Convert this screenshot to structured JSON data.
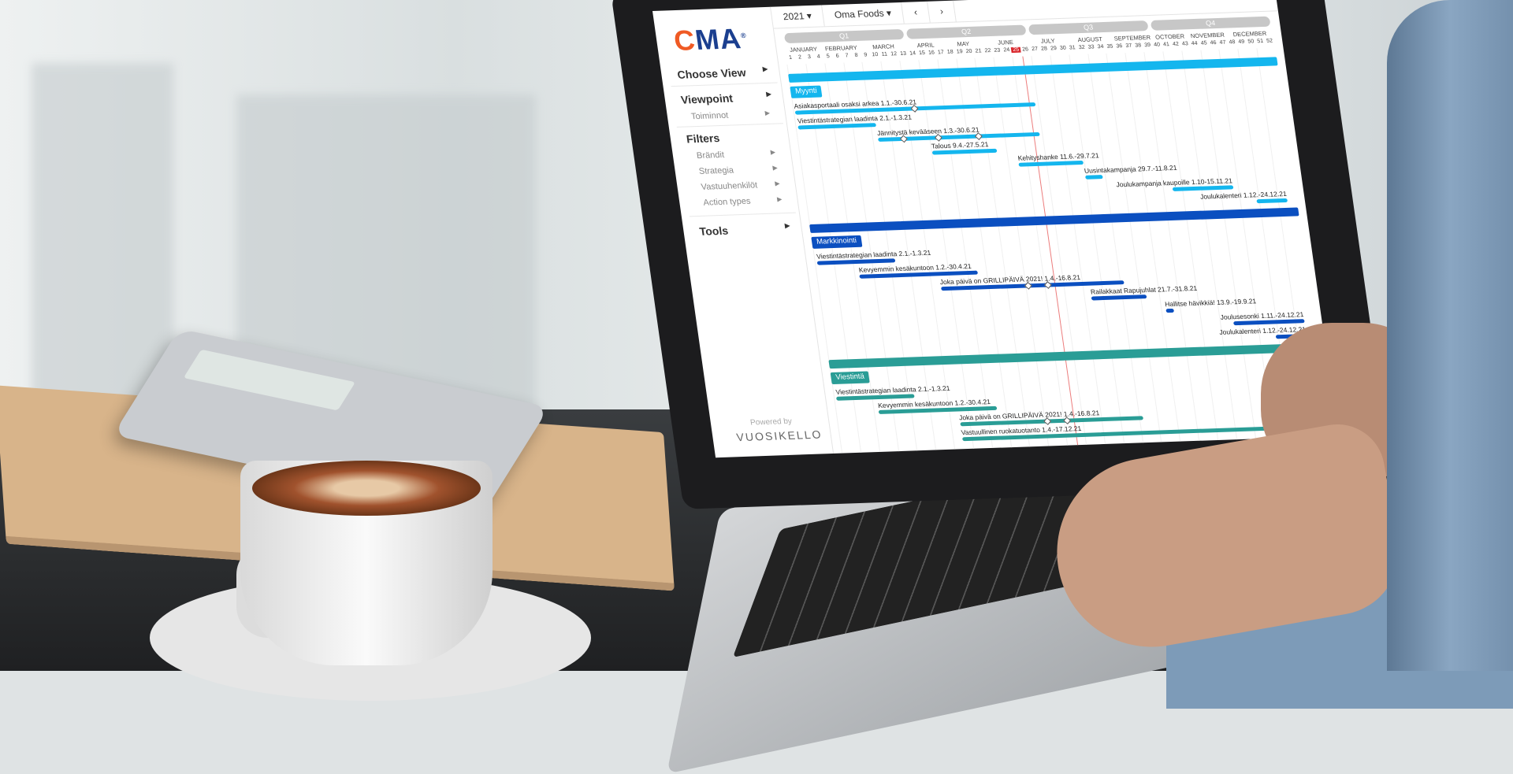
{
  "toolbar": {
    "year": "2021",
    "company": "Oma Foods",
    "prev_icon": "chevron-left",
    "next_icon": "chevron-right"
  },
  "sidebar": {
    "logo": "OMA",
    "choose_view": "Choose View",
    "viewpoint": "Viewpoint",
    "viewpoint_items": [
      "Toiminnot"
    ],
    "filters": "Filters",
    "filter_items": [
      "Brändit",
      "Strategia",
      "Vastuuhenkilöt",
      "Action types"
    ],
    "tools": "Tools",
    "powered_by": "Powered by",
    "brand": "VUOSIKELLO"
  },
  "timeline": {
    "quarters": [
      "Q1",
      "Q2",
      "Q3",
      "Q4"
    ],
    "months": [
      "JANUARY",
      "FEBRUARY",
      "MARCH",
      "APRIL",
      "MAY",
      "JUNE",
      "JULY",
      "AUGUST",
      "SEPTEMBER",
      "OCTOBER",
      "NOVEMBER",
      "DECEMBER"
    ],
    "weeks": [
      1,
      2,
      3,
      4,
      5,
      6,
      7,
      8,
      9,
      10,
      11,
      12,
      13,
      14,
      15,
      16,
      17,
      18,
      19,
      20,
      21,
      22,
      23,
      24,
      25,
      26,
      27,
      28,
      29,
      30,
      31,
      32,
      33,
      34,
      35,
      36,
      37,
      38,
      39,
      40,
      41,
      42,
      43,
      44,
      45,
      46,
      47,
      48,
      49,
      50,
      51,
      52
    ],
    "current_week": 25,
    "current_week_color": "#d9262b"
  },
  "groups": [
    {
      "name": "Myynti",
      "color": "#14b6ee",
      "tasks": [
        {
          "label": "Asiakasportaali osaksi arkea 1.1.-30.6.21",
          "milestones": [
            "31.3"
          ]
        },
        {
          "label": "Viestintästrategian laadinta 2.1.-1.3.21",
          "milestones": []
        },
        {
          "label": "Jännitystä kevääseen 1.3.-30.6.21",
          "milestones": [
            "20.3",
            "15.4",
            "15.5"
          ]
        },
        {
          "label": "Talous 9.4.-27.5.21",
          "milestones": []
        },
        {
          "label": "Kehityshanke 11.6.-29.7.21",
          "milestones": []
        },
        {
          "label": "Uusintakampanja 29.7.-11.8.21",
          "milestones": []
        },
        {
          "label": "Joulukampanja kaupoille 1.10-15.11.21",
          "milestones": []
        },
        {
          "label": "Joulukalenteri 1.12.-24.12.21",
          "milestones": []
        }
      ]
    },
    {
      "name": "Markkinointi",
      "color": "#0b4fc0",
      "tasks": [
        {
          "label": "Viestintästrategian laadinta 2.1.-1.3.21",
          "milestones": []
        },
        {
          "label": "Kevyemmin kesäkuntoon 1.2.-30.4.21",
          "milestones": []
        },
        {
          "label": "Joka päivä on GRILLIPÄIVÄ 2021! 1.4.-16.8.21",
          "milestones": [
            "5.6",
            "20.6"
          ]
        },
        {
          "label": "Railakkaat Rapujuhlat 21.7.-31.8.21",
          "milestones": []
        },
        {
          "label": "Hallitse hävikkiä! 13.9.-19.9.21",
          "milestones": []
        },
        {
          "label": "Joulusesonki 1.11.-24.12.21",
          "milestones": []
        },
        {
          "label": "Joulukalenteri 1.12.-24.12.21",
          "milestones": []
        }
      ]
    },
    {
      "name": "Viestintä",
      "color": "#2a9d96",
      "tasks": [
        {
          "label": "Viestintästrategian laadinta 2.1.-1.3.21",
          "milestones": []
        },
        {
          "label": "Kevyemmin kesäkuntoon 1.2.-30.4.21",
          "milestones": []
        },
        {
          "label": "Joka päivä on GRILLIPÄIVÄ 2021! 1.4.-16.8.21",
          "milestones": [
            "5.6",
            "20.6"
          ]
        },
        {
          "label": "Vastuullinen ruokatuotanto 1.4.-17.12.21",
          "milestones": []
        }
      ]
    }
  ]
}
